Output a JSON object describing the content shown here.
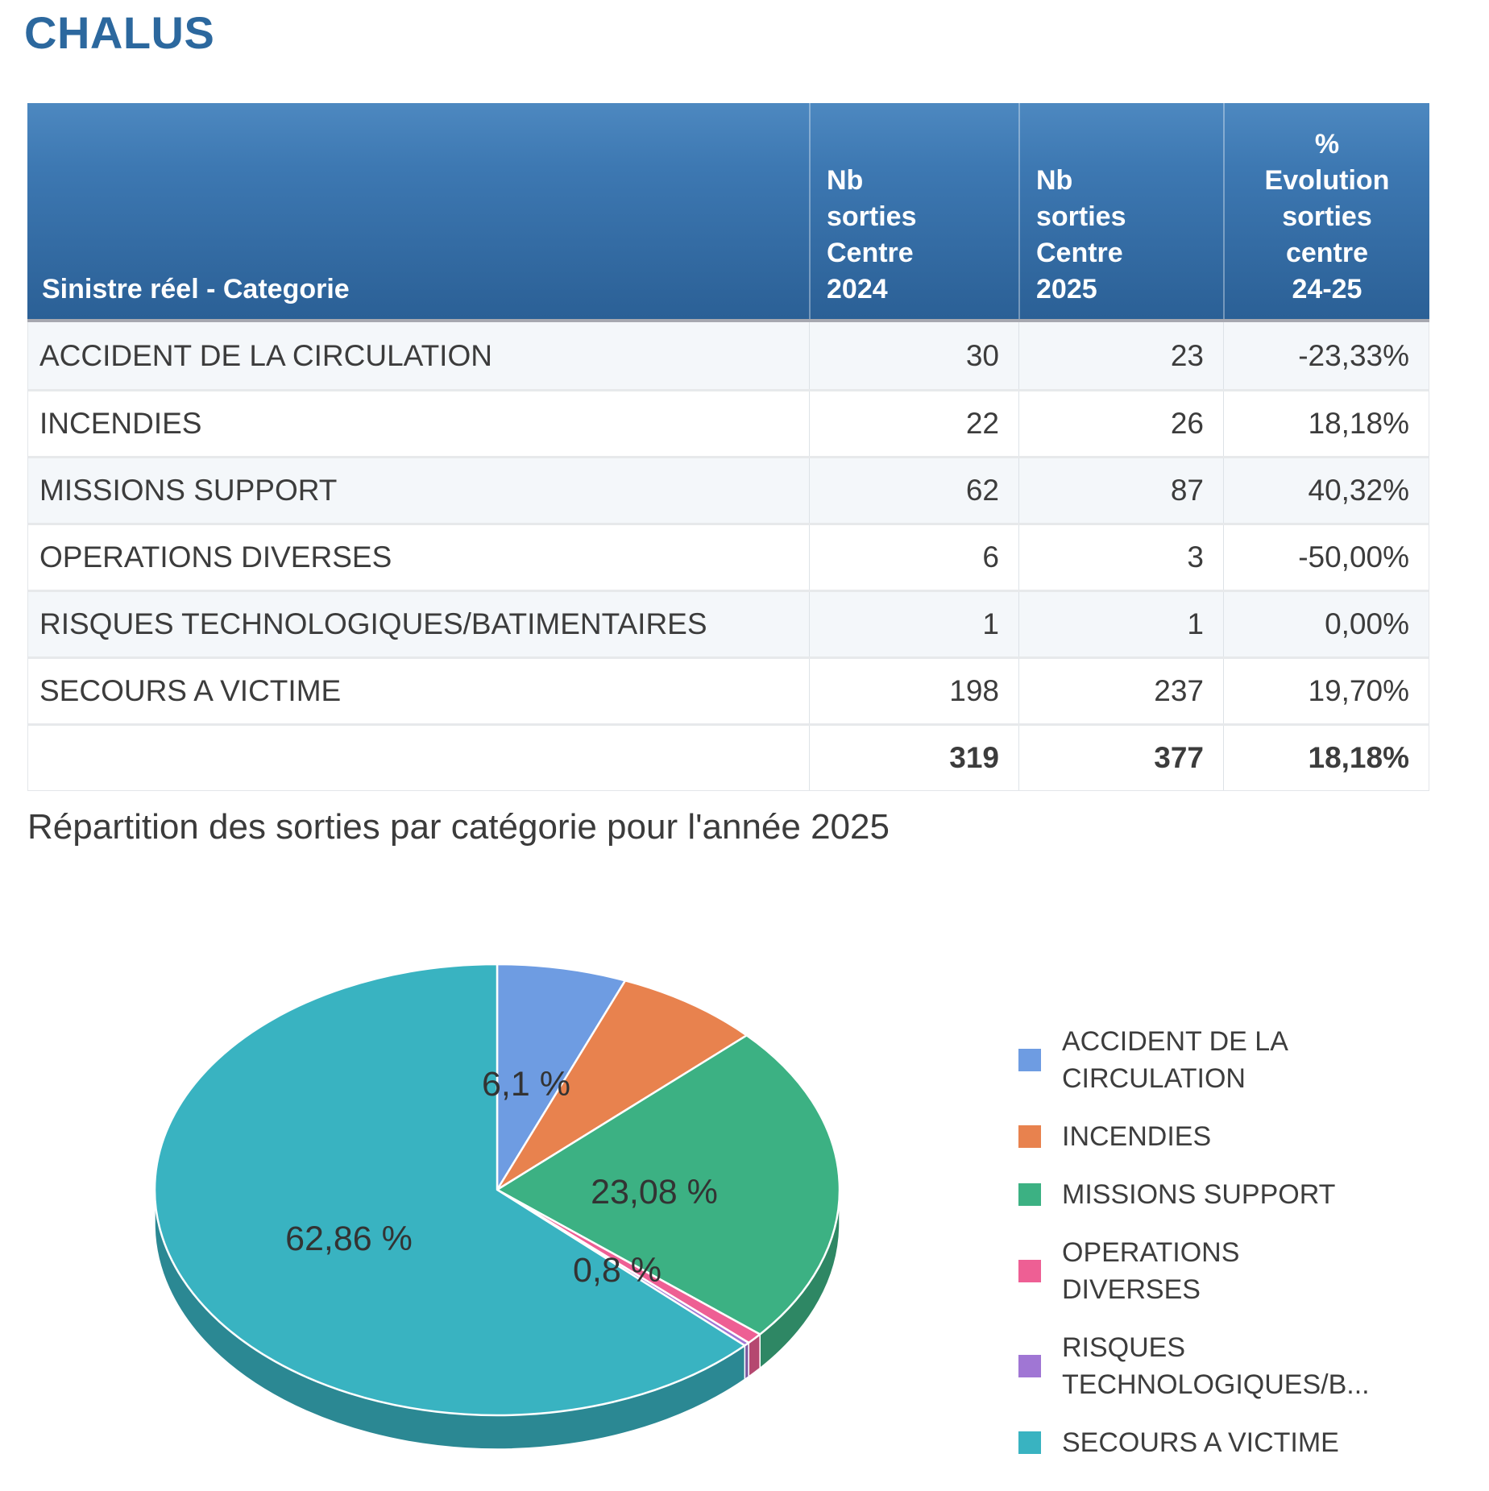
{
  "page_title": "CHALUS",
  "table": {
    "header": {
      "category": "Sinistre réel - Categorie",
      "col_2024": "Nb\nsorties\nCentre\n2024",
      "col_2025": "Nb\nsorties\nCentre\n2025",
      "col_evolution": "%\nEvolution\nsorties\ncentre\n24-25"
    },
    "rows": [
      {
        "category": "ACCIDENT DE LA CIRCULATION",
        "sorties_2024": "30",
        "sorties_2025": "23",
        "evolution": "-23,33%"
      },
      {
        "category": "INCENDIES",
        "sorties_2024": "22",
        "sorties_2025": "26",
        "evolution": "18,18%"
      },
      {
        "category": "MISSIONS SUPPORT",
        "sorties_2024": "62",
        "sorties_2025": "87",
        "evolution": "40,32%"
      },
      {
        "category": "OPERATIONS DIVERSES",
        "sorties_2024": "6",
        "sorties_2025": "3",
        "evolution": "-50,00%"
      },
      {
        "category": "RISQUES TECHNOLOGIQUES/BATIMENTAIRES",
        "sorties_2024": "1",
        "sorties_2025": "1",
        "evolution": "0,00%"
      },
      {
        "category": "SECOURS A VICTIME",
        "sorties_2024": "198",
        "sorties_2025": "237",
        "evolution": "19,70%"
      }
    ],
    "total": {
      "category": "",
      "sorties_2024": "319",
      "sorties_2025": "377",
      "evolution": "18,18%"
    }
  },
  "chart_section_title": "Répartition des sorties par catégorie pour l'année 2025",
  "chart_data": {
    "type": "pie",
    "title": "Répartition des sorties par catégorie pour l'année 2025",
    "categories": [
      "ACCIDENT DE LA CIRCULATION",
      "INCENDIES",
      "MISSIONS SUPPORT",
      "OPERATIONS DIVERSES",
      "RISQUES TECHNOLOGIQUES/BATIMENTAIRES",
      "SECOURS A VICTIME"
    ],
    "values": [
      23,
      26,
      87,
      3,
      1,
      237
    ],
    "total": 377,
    "percentages": [
      6.1,
      6.9,
      23.08,
      0.8,
      0.27,
      62.86
    ],
    "colors": [
      "#6E9CE2",
      "#E8824E",
      "#3CB183",
      "#EE5F94",
      "#A076D4",
      "#39B3C1"
    ],
    "effect": "3d",
    "legend_position": "right",
    "percent_labels": [
      {
        "slice_index": 0,
        "text": "6,1 %"
      },
      {
        "slice_index": 2,
        "text": "23,08 %"
      },
      {
        "slice_index": 3,
        "text": "0,8 %"
      },
      {
        "slice_index": 5,
        "text": "62,86 %"
      }
    ]
  },
  "legend": {
    "items": [
      {
        "label": "ACCIDENT DE LA\nCIRCULATION"
      },
      {
        "label": "INCENDIES"
      },
      {
        "label": "MISSIONS SUPPORT"
      },
      {
        "label": "OPERATIONS\nDIVERSES"
      },
      {
        "label": "RISQUES\nTECHNOLOGIQUES/B..."
      },
      {
        "label": "SECOURS A VICTIME"
      }
    ]
  }
}
